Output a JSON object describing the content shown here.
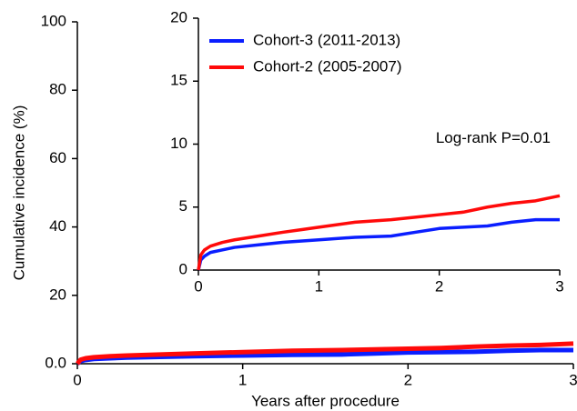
{
  "chart_data": [
    {
      "type": "line",
      "xlabel": "Years after procedure",
      "ylabel": "Cumulative incidence (%)",
      "xlim": [
        0,
        3
      ],
      "xticks": [
        0,
        1,
        2,
        3
      ],
      "ylim": [
        0,
        100
      ],
      "yticks": [
        {
          "value": 0,
          "label": "0.0"
        },
        20,
        40,
        60,
        80,
        100
      ],
      "x": [
        0,
        0.02,
        0.05,
        0.1,
        0.2,
        0.3,
        0.5,
        0.7,
        1.0,
        1.3,
        1.6,
        1.8,
        2.0,
        2.2,
        2.4,
        2.6,
        2.8,
        3.0
      ],
      "series": [
        {
          "name": "Cohort-3 (2011-2013)",
          "color": "#0a1eff",
          "values": [
            0,
            0.8,
            1.1,
            1.4,
            1.6,
            1.8,
            2.0,
            2.2,
            2.4,
            2.6,
            2.7,
            3.0,
            3.3,
            3.4,
            3.5,
            3.8,
            4.0,
            4.0
          ]
        },
        {
          "name": "Cohort-2 (2005-2007)",
          "color": "#ff0a0a",
          "values": [
            0,
            1.2,
            1.6,
            1.9,
            2.2,
            2.4,
            2.7,
            3.0,
            3.4,
            3.8,
            4.0,
            4.2,
            4.4,
            4.6,
            5.0,
            5.3,
            5.5,
            5.9
          ]
        }
      ]
    },
    {
      "type": "line",
      "annotation": "Log-rank P=0.01",
      "legend": "upper left",
      "xlim": [
        0,
        3
      ],
      "xticks": [
        0,
        1,
        2,
        3
      ],
      "ylim": [
        0,
        20
      ],
      "yticks": [
        0,
        5,
        10,
        15,
        20
      ],
      "x": [
        0,
        0.02,
        0.05,
        0.1,
        0.2,
        0.3,
        0.5,
        0.7,
        1.0,
        1.3,
        1.6,
        1.8,
        2.0,
        2.2,
        2.4,
        2.6,
        2.8,
        3.0
      ],
      "series": [
        {
          "name": "Cohort-3 (2011-2013)",
          "color": "#0a1eff",
          "values": [
            0,
            0.8,
            1.1,
            1.4,
            1.6,
            1.8,
            2.0,
            2.2,
            2.4,
            2.6,
            2.7,
            3.0,
            3.3,
            3.4,
            3.5,
            3.8,
            4.0,
            4.0
          ]
        },
        {
          "name": "Cohort-2 (2005-2007)",
          "color": "#ff0a0a",
          "values": [
            0,
            1.2,
            1.6,
            1.9,
            2.2,
            2.4,
            2.7,
            3.0,
            3.4,
            3.8,
            4.0,
            4.2,
            4.4,
            4.6,
            5.0,
            5.3,
            5.5,
            5.9
          ]
        }
      ]
    }
  ]
}
